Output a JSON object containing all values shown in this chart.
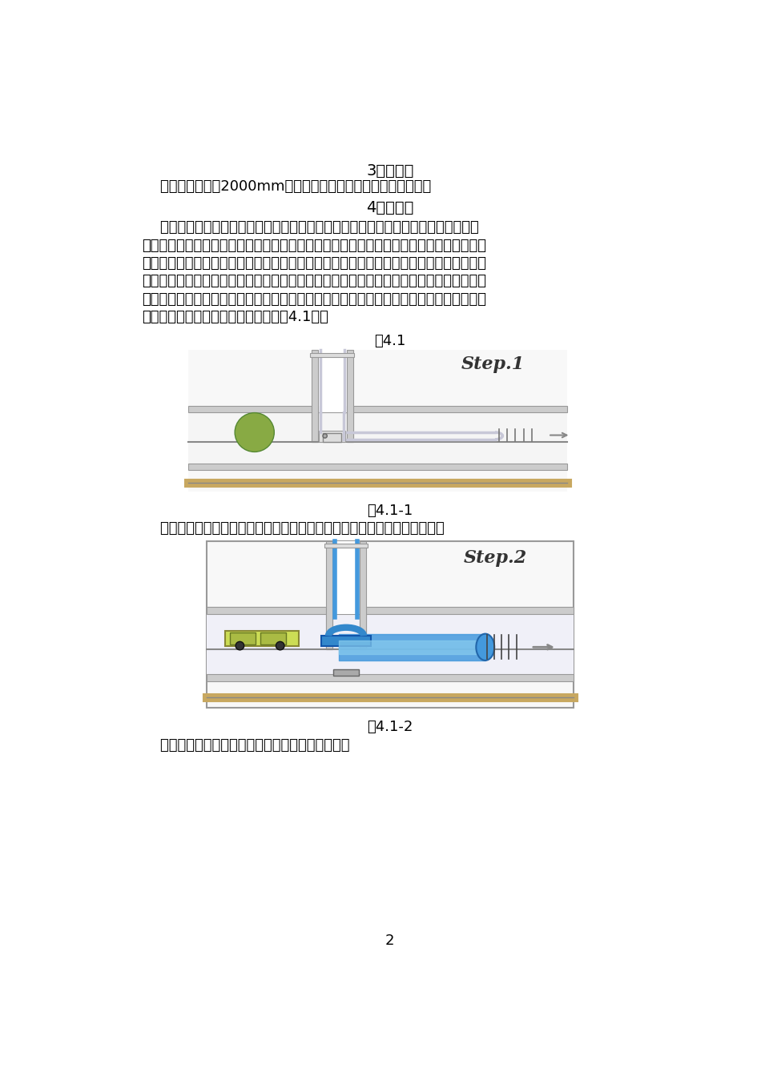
{
  "bg_color": "#ffffff",
  "title_section3": "3适用范围",
  "text_section3": "    适用于地下管径2000mm以下、各类材质排水管道的修复工程。",
  "title_section4": "4工艺原理",
  "body_lines": [
    "    本工法采用软管翻转内衬修复法，该技术使用浸透热固性树脂的带有防渗膜的纤维增",
    "强软管，工程中使用的软管是根据待修复管道的情况按设计制造软管，施工中先将浸有树脂",
    "的软管一端翻转并用夹具固定在待修复管道的入口处，然后利用水压或气压使软衬管浸有树",
    "脂的内层膨胀翻转到外面，并与旧管的内壁紧贴粘结，当软衬管到达终点，再向管内注入蒸",
    "汽，通过循环加热，在规定的设计时间内，使软衬管固化成型，在旧管内壁形成一层高强度",
    "具有防腐防渗功能的坚硬内衬新管（图4.1）。"
  ],
  "fig41_label": "图4.1",
  "fig411_label": "图4.1-1",
  "step1_caption": "    步骤一，在旧管道内翻转送入辅助内衬材料，起到保护树脂内衬管的作用。",
  "fig412_label": "图4.1-2",
  "step2_caption": "    步骤二，把树脂内衬软管用翻转的方法送入管内。",
  "page_number": "2",
  "text_color": "#000000",
  "soil_color": "#F0C060",
  "soil_color2": "#E8B84B",
  "pipe_wall_color": "#CCCCCC",
  "pipe_wall_edge": "#999999",
  "liner1_color": "#C8C8D8",
  "liner2_color": "#4499DD",
  "green_color": "#88AA55",
  "blue_equip_color": "#3388CC"
}
